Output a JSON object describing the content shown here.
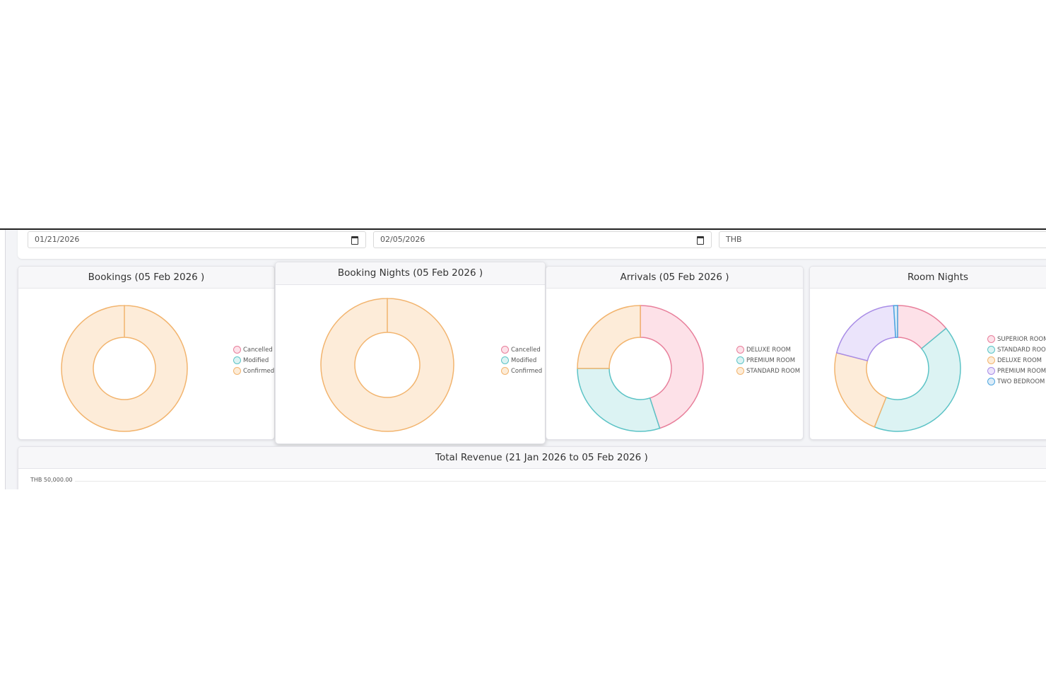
{
  "filters": {
    "start_date": "01/21/2026",
    "end_date": "02/05/2026",
    "currency": "THB"
  },
  "charts": {
    "bookings": {
      "title": "Bookings (05 Feb 2026 )",
      "legend": [
        "Cancelled",
        "Modified",
        "Confirmed"
      ],
      "colors": [
        "#e87f9b",
        "#5cc3c6",
        "#f2b46e"
      ]
    },
    "booking_nights": {
      "title": "Booking Nights (05 Feb 2026 )",
      "legend": [
        "Cancelled",
        "Modified",
        "Confirmed"
      ],
      "colors": [
        "#e87f9b",
        "#5cc3c6",
        "#f2b46e"
      ]
    },
    "arrivals": {
      "title": "Arrivals (05 Feb 2026 )",
      "legend": [
        "DELUXE ROOM",
        "PREMIUM ROOM",
        "STANDARD ROOM"
      ],
      "colors": [
        "#e87f9b",
        "#5cc3c6",
        "#f2b46e"
      ]
    },
    "room_nights": {
      "title": "Room Nights",
      "legend": [
        "SUPERIOR ROOM",
        "STANDARD ROOM",
        "DELUXE ROOM",
        "PREMIUM ROOM",
        "TWO BEDROOM S"
      ],
      "colors": [
        "#e87f9b",
        "#5cc3c6",
        "#f2b46e",
        "#a88ce6",
        "#4da6e0"
      ]
    },
    "revenue": {
      "title": "Total Revenue (21 Jan 2026 to 05 Feb 2026 )",
      "y_tick": "THB 50,000.00"
    }
  },
  "chart_data": [
    {
      "type": "pie",
      "title": "Bookings (05 Feb 2026 )",
      "categories": [
        "Cancelled",
        "Modified",
        "Confirmed"
      ],
      "values": [
        0,
        0,
        1
      ]
    },
    {
      "type": "pie",
      "title": "Booking Nights (05 Feb 2026 )",
      "categories": [
        "Cancelled",
        "Modified",
        "Confirmed"
      ],
      "values": [
        0,
        0,
        1
      ]
    },
    {
      "type": "pie",
      "title": "Arrivals (05 Feb 2026 )",
      "categories": [
        "DELUXE ROOM",
        "PREMIUM ROOM",
        "STANDARD ROOM"
      ],
      "values": [
        45,
        30,
        25
      ]
    },
    {
      "type": "pie",
      "title": "Room Nights",
      "categories": [
        "SUPERIOR ROOM",
        "STANDARD ROOM",
        "DELUXE ROOM",
        "PREMIUM ROOM",
        "TWO BEDROOM S"
      ],
      "values": [
        14,
        42,
        23,
        20,
        1
      ]
    }
  ]
}
